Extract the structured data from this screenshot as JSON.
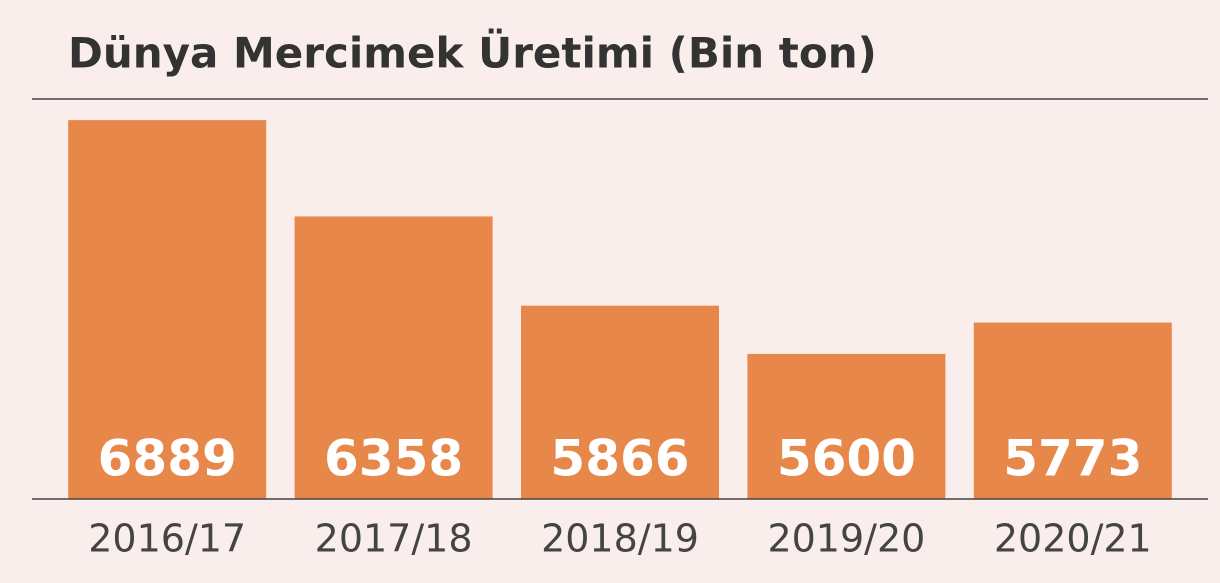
{
  "chart_data": {
    "type": "bar",
    "title": "Dünya Mercimek Üretimi (Bin ton)",
    "categories": [
      "2016/17",
      "2017/18",
      "2018/19",
      "2019/20",
      "2020/21"
    ],
    "values": [
      6889,
      6358,
      5866,
      5600,
      5773
    ],
    "color": "#e8874a",
    "ylim": [
      4800,
      7000
    ]
  }
}
